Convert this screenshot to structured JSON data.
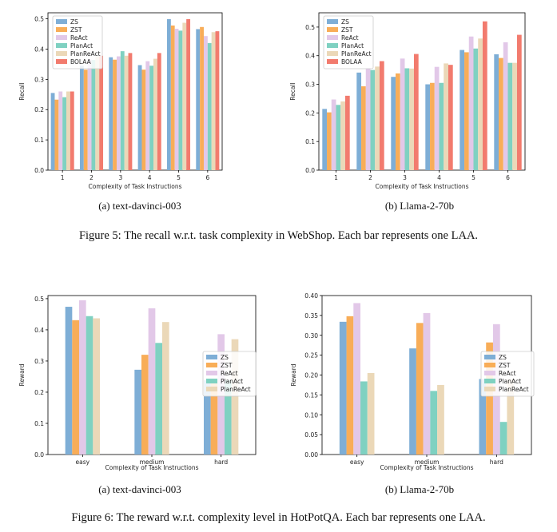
{
  "chart_data": [
    {
      "id": "recall-davinci",
      "type": "bar",
      "xlabel": "Complexity of Task Instructions",
      "ylabel": "Recall",
      "categories": [
        "1",
        "2",
        "3",
        "4",
        "5",
        "6"
      ],
      "ylim": [
        0,
        0.52
      ],
      "yticks": [
        "0.0",
        "0.1",
        "0.2",
        "0.3",
        "0.4",
        "0.5"
      ],
      "legend_position": "top-left",
      "series": [
        {
          "name": "ZS",
          "color": "#7eaed6",
          "values": [
            0.255,
            0.345,
            0.373,
            0.347,
            0.499,
            0.466
          ]
        },
        {
          "name": "ZST",
          "color": "#f8ad58",
          "values": [
            0.233,
            0.332,
            0.365,
            0.332,
            0.478,
            0.473
          ]
        },
        {
          "name": "ReAct",
          "color": "#e2c8e8",
          "values": [
            0.26,
            0.367,
            0.376,
            0.36,
            0.467,
            0.443
          ]
        },
        {
          "name": "PlanAct",
          "color": "#7fd1c1",
          "values": [
            0.241,
            0.364,
            0.393,
            0.345,
            0.461,
            0.42
          ]
        },
        {
          "name": "PlanReAct",
          "color": "#ebd8b8",
          "values": [
            0.26,
            0.377,
            0.378,
            0.368,
            0.487,
            0.456
          ]
        },
        {
          "name": "BOLAA",
          "color": "#f27b6e",
          "values": [
            0.26,
            0.378,
            0.387,
            0.387,
            0.499,
            0.459
          ]
        }
      ]
    },
    {
      "id": "recall-llama",
      "type": "bar",
      "xlabel": "Complexity of Task Instructions",
      "ylabel": "Recall",
      "categories": [
        "1",
        "2",
        "3",
        "4",
        "5",
        "6"
      ],
      "ylim": [
        0,
        0.55
      ],
      "yticks": [
        "0.0",
        "0.1",
        "0.2",
        "0.3",
        "0.4",
        "0.5"
      ],
      "legend_position": "top-left",
      "series": [
        {
          "name": "ZS",
          "color": "#7eaed6",
          "values": [
            0.214,
            0.341,
            0.326,
            0.3,
            0.42,
            0.405
          ]
        },
        {
          "name": "ZST",
          "color": "#f8ad58",
          "values": [
            0.202,
            0.293,
            0.338,
            0.305,
            0.412,
            0.392
          ]
        },
        {
          "name": "ReAct",
          "color": "#e2c8e8",
          "values": [
            0.247,
            0.357,
            0.39,
            0.361,
            0.467,
            0.447
          ]
        },
        {
          "name": "PlanAct",
          "color": "#7fd1c1",
          "values": [
            0.228,
            0.35,
            0.356,
            0.305,
            0.425,
            0.375
          ]
        },
        {
          "name": "PlanReAct",
          "color": "#ebd8b8",
          "values": [
            0.24,
            0.362,
            0.355,
            0.373,
            0.46,
            0.375
          ]
        },
        {
          "name": "BOLAA",
          "color": "#f27b6e",
          "values": [
            0.26,
            0.381,
            0.406,
            0.368,
            0.52,
            0.473
          ]
        }
      ]
    },
    {
      "id": "reward-davinci",
      "type": "bar",
      "xlabel": "Complexity of Task Instructions",
      "ylabel": "Reward",
      "categories": [
        "easy",
        "medium",
        "hard"
      ],
      "ylim": [
        0,
        0.51
      ],
      "yticks": [
        "0.0",
        "0.1",
        "0.2",
        "0.3",
        "0.4",
        "0.5"
      ],
      "legend_position": "center-right",
      "series": [
        {
          "name": "ZS",
          "color": "#7eaed6",
          "values": [
            0.474,
            0.272,
            0.238
          ]
        },
        {
          "name": "ZST",
          "color": "#f8ad58",
          "values": [
            0.431,
            0.32,
            0.238
          ]
        },
        {
          "name": "ReAct",
          "color": "#e2c8e8",
          "values": [
            0.495,
            0.469,
            0.386
          ]
        },
        {
          "name": "PlanAct",
          "color": "#7fd1c1",
          "values": [
            0.444,
            0.358,
            0.238
          ]
        },
        {
          "name": "PlanReAct",
          "color": "#ebd8b8",
          "values": [
            0.437,
            0.425,
            0.37
          ]
        }
      ]
    },
    {
      "id": "reward-llama",
      "type": "bar",
      "xlabel": "Complexity of Task Instructions",
      "ylabel": "Reward",
      "categories": [
        "easy",
        "medium",
        "hard"
      ],
      "ylim": [
        0,
        0.4
      ],
      "yticks": [
        "0.00",
        "0.05",
        "0.10",
        "0.15",
        "0.20",
        "0.25",
        "0.30",
        "0.35",
        "0.40"
      ],
      "legend_position": "center-right",
      "series": [
        {
          "name": "ZS",
          "color": "#7eaed6",
          "values": [
            0.334,
            0.267,
            0.19
          ]
        },
        {
          "name": "ZST",
          "color": "#f8ad58",
          "values": [
            0.348,
            0.331,
            0.282
          ]
        },
        {
          "name": "ReAct",
          "color": "#e2c8e8",
          "values": [
            0.381,
            0.356,
            0.328
          ]
        },
        {
          "name": "PlanAct",
          "color": "#7fd1c1",
          "values": [
            0.184,
            0.16,
            0.082
          ]
        },
        {
          "name": "PlanReAct",
          "color": "#ebd8b8",
          "values": [
            0.205,
            0.175,
            0.19
          ]
        }
      ]
    }
  ],
  "captions": {
    "sub_a": "(a) text-davinci-003",
    "sub_b": "(b) Llama-2-70b",
    "figure5": "Figure 5: The recall w.r.t. task complexity in WebShop. Each bar represents one LAA.",
    "figure6": "Figure 6: The reward w.r.t. complexity level in HotPotQA. Each bar represents one LAA."
  }
}
